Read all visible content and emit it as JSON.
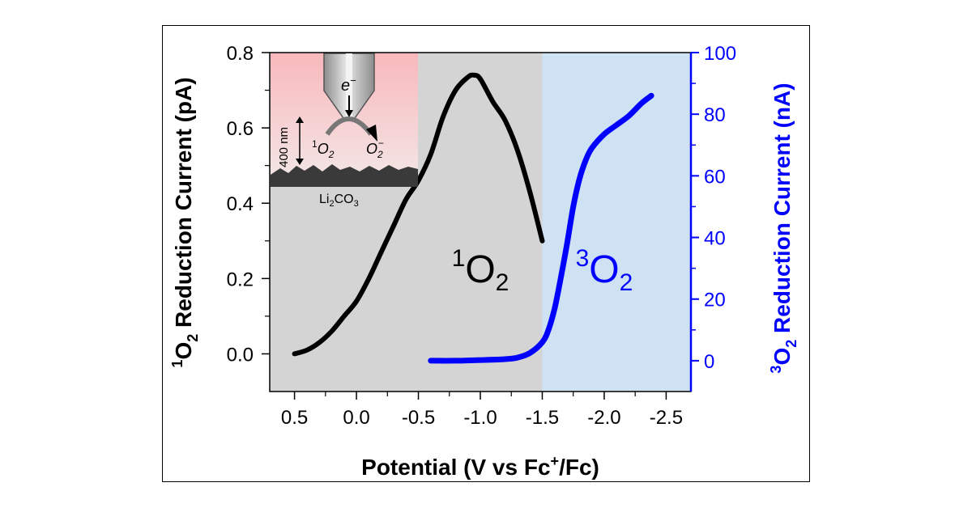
{
  "chart_data": {
    "type": "line",
    "xlabel": "Potential (V vs Fc",
    "xlabel_sup": "+",
    "xlabel_tail": "/Fc)",
    "xlim": [
      0.7,
      -2.7
    ],
    "x_ticks": [
      0.5,
      0.0,
      -0.5,
      -1.0,
      -1.5,
      -2.0,
      -2.5
    ],
    "x_tick_labels": [
      "0.5",
      "0.0",
      "-0.5",
      "-1.0",
      "-1.5",
      "-2.0",
      "-2.5"
    ],
    "left_axis": {
      "label_sup": "1",
      "label_main": "O",
      "label_sub": "2",
      "label_tail": " Reduction Current (pA)",
      "ylim": [
        -0.1,
        0.8
      ],
      "ticks": [
        0.0,
        0.2,
        0.4,
        0.6,
        0.8
      ],
      "tick_labels": [
        "0.0",
        "0.2",
        "0.4",
        "0.6",
        "0.8"
      ],
      "color": "#000000"
    },
    "right_axis": {
      "label_sup": "3",
      "label_main": "O",
      "label_sub": "2",
      "label_tail": " Reduction Current (nA)",
      "ylim": [
        -10,
        100
      ],
      "ticks": [
        0,
        20,
        40,
        60,
        80,
        100
      ],
      "tick_labels": [
        "0",
        "20",
        "40",
        "60",
        "80",
        "100"
      ],
      "color": "#0000ff"
    },
    "regions": [
      {
        "x_from": 0.7,
        "x_to": -1.5,
        "color": "#d4d4d4"
      },
      {
        "x_from": -1.5,
        "x_to": -2.7,
        "color": "#cfe2f3"
      }
    ],
    "series": [
      {
        "axis": "left",
        "color": "#000000",
        "x": [
          0.5,
          0.4,
          0.3,
          0.2,
          0.1,
          0.0,
          -0.1,
          -0.2,
          -0.3,
          -0.4,
          -0.5,
          -0.6,
          -0.7,
          -0.8,
          -0.9,
          -0.95,
          -1.0,
          -1.1,
          -1.2,
          -1.3,
          -1.4,
          -1.5
        ],
        "y": [
          0.0,
          0.01,
          0.03,
          0.06,
          0.1,
          0.14,
          0.2,
          0.27,
          0.34,
          0.41,
          0.46,
          0.53,
          0.63,
          0.7,
          0.735,
          0.74,
          0.73,
          0.67,
          0.62,
          0.54,
          0.43,
          0.3
        ]
      },
      {
        "axis": "right",
        "color": "#0000ff",
        "x": [
          -0.6,
          -0.8,
          -1.0,
          -1.2,
          -1.3,
          -1.4,
          -1.5,
          -1.55,
          -1.6,
          -1.65,
          -1.7,
          -1.75,
          -1.8,
          -1.85,
          -1.9,
          -2.0,
          -2.1,
          -2.2,
          -2.3,
          -2.38
        ],
        "y": [
          0,
          0,
          0.2,
          0.5,
          1.0,
          2.5,
          6.0,
          10.0,
          17.0,
          27.0,
          38.0,
          50.0,
          59.0,
          65.0,
          69.0,
          73.5,
          76.5,
          79.5,
          83.5,
          86.0
        ]
      }
    ],
    "annotations": [
      {
        "sup": "1",
        "main": "O",
        "sub": "2",
        "color": "#000000",
        "x": -1.0,
        "y": 0.19
      },
      {
        "sup": "3",
        "main": "O",
        "sub": "2",
        "color": "#0000ff",
        "x": -2.0,
        "y": 0.19
      }
    ],
    "inset": {
      "electron_label": "e",
      "electron_sup": "−",
      "distance_label": "400 nm",
      "reactant_sup": "1",
      "reactant_main": "O",
      "reactant_sub": "2",
      "product_main": "O",
      "product_sub": "2",
      "product_sup": "−",
      "substrate_label_main": "Li",
      "substrate_label_sub1": "2",
      "substrate_label_mid": "CO",
      "substrate_label_sub2": "3",
      "top_color": "#f8b8bc",
      "bottom_color": "#f4e4e4",
      "substrate_color": "#3a3a3a"
    }
  }
}
